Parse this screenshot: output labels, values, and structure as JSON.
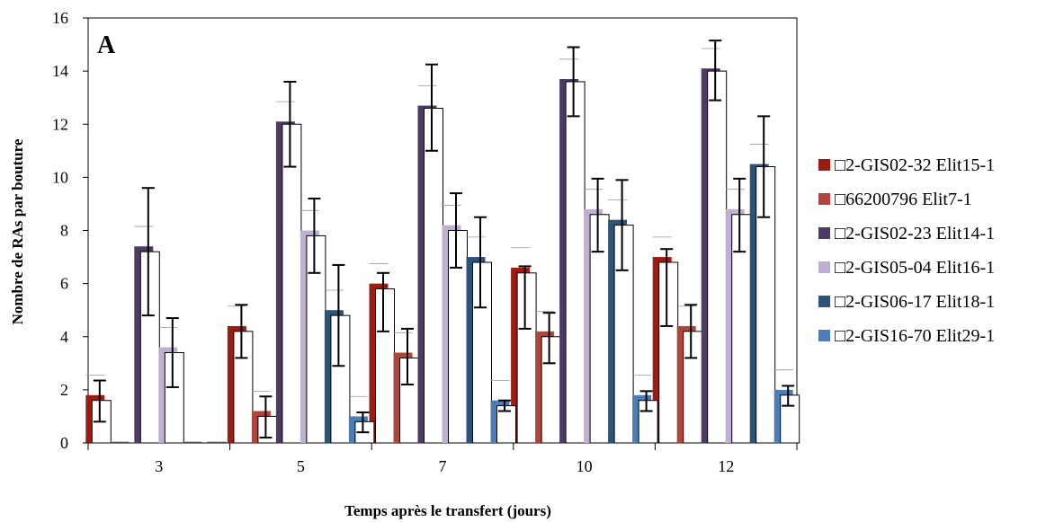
{
  "chart_data": {
    "type": "bar",
    "panel_label": "A",
    "xlabel": "Temps après le transfert (jours)",
    "ylabel": "Nombre de RAs par bouture",
    "ylim": [
      0,
      16
    ],
    "y_ticks": [
      "0",
      "2",
      "4",
      "6",
      "8",
      "10",
      "12",
      "14",
      "16"
    ],
    "categories": [
      "3",
      "5",
      "7",
      "10",
      "12"
    ],
    "legend_position": "right",
    "series": [
      {
        "name": "□2-GIS02-32 Elit15-1",
        "color": "#9b1c12",
        "values": [
          1.8,
          4.4,
          6.0,
          6.6,
          7.0
        ],
        "shadow": [
          1.6,
          4.2,
          5.8,
          6.4,
          6.8
        ],
        "err_low": [
          0.8,
          3.2,
          4.2,
          4.3,
          4.4
        ],
        "err_high": [
          2.35,
          5.2,
          6.4,
          6.65,
          7.3
        ]
      },
      {
        "name": "□66200796 Elit7-1",
        "color": "#b0453c",
        "values": [
          0.0,
          1.2,
          3.4,
          4.2,
          4.4
        ],
        "shadow": [
          0.0,
          1.0,
          3.2,
          4.0,
          4.2
        ],
        "err_low": null,
        "err_high": null,
        "err_low_vals": [
          null,
          0.2,
          2.2,
          3.0,
          3.2
        ],
        "err_high_vals": [
          null,
          1.75,
          4.3,
          4.9,
          5.2
        ]
      },
      {
        "name": "□2-GIS02-23 Elit14-1",
        "color": "#4e3b63",
        "values": [
          7.4,
          12.1,
          12.7,
          13.7,
          14.1
        ],
        "shadow": [
          7.2,
          12.0,
          12.6,
          13.6,
          14.0
        ],
        "err_low_vals": [
          4.8,
          10.4,
          11.0,
          12.3,
          12.9
        ],
        "err_high_vals": [
          9.6,
          13.6,
          14.25,
          14.9,
          15.15
        ]
      },
      {
        "name": "□2-GIS05-04 Elit16-1",
        "color": "#bfb0d2",
        "values": [
          3.6,
          8.0,
          8.2,
          8.8,
          8.8
        ],
        "shadow": [
          3.4,
          7.8,
          8.0,
          8.6,
          8.6
        ],
        "err_low_vals": [
          2.1,
          6.4,
          6.6,
          7.2,
          7.2
        ],
        "err_high_vals": [
          4.7,
          9.2,
          9.4,
          9.95,
          9.95
        ]
      },
      {
        "name": "□2-GIS06-17 Elit18-1",
        "color": "#2d5378",
        "values": [
          0.0,
          5.0,
          7.0,
          8.4,
          10.5
        ],
        "shadow": [
          0.0,
          4.8,
          6.8,
          8.2,
          10.4
        ],
        "err_low_vals": [
          null,
          2.9,
          5.1,
          6.5,
          8.5
        ],
        "err_high_vals": [
          null,
          6.7,
          8.5,
          9.9,
          12.3
        ]
      },
      {
        "name": "□2-GIS16-70 Elit29-1",
        "color": "#4c7eb5",
        "values": [
          0.0,
          1.0,
          1.6,
          1.8,
          2.0
        ],
        "shadow": [
          0.0,
          0.8,
          1.4,
          1.6,
          1.8
        ],
        "err_low_vals": [
          null,
          0.4,
          1.2,
          1.2,
          1.4
        ],
        "err_high_vals": [
          null,
          1.15,
          1.6,
          1.95,
          2.15
        ]
      }
    ]
  }
}
